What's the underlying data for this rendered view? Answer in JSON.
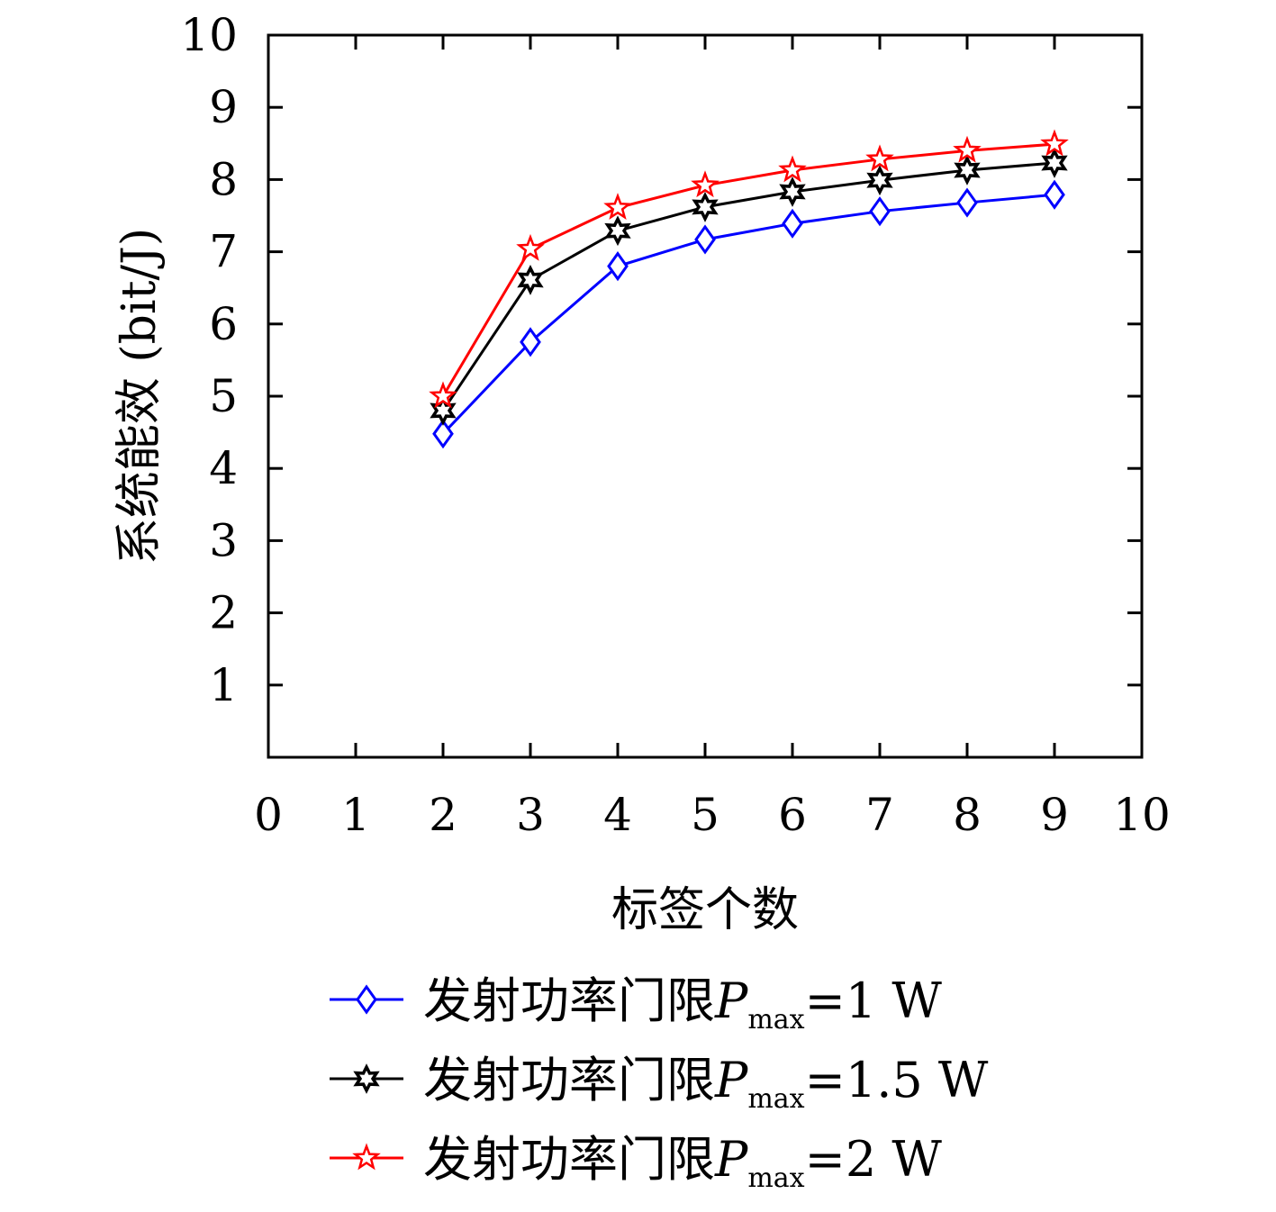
{
  "chart_data": {
    "type": "line",
    "title": "",
    "xlabel": "标签个数",
    "ylabel": "系统能效 (bit/J)",
    "xlim": [
      0,
      10
    ],
    "ylim": [
      0,
      10
    ],
    "xticks": [
      "0",
      "1",
      "2",
      "3",
      "4",
      "5",
      "6",
      "7",
      "8",
      "9",
      "10"
    ],
    "yticks": [
      "1",
      "2",
      "3",
      "4",
      "5",
      "6",
      "7",
      "8",
      "9",
      "10"
    ],
    "grid": false,
    "legend_position": "bottom",
    "x": [
      2,
      3,
      4,
      5,
      6,
      7,
      8,
      9
    ],
    "series": [
      {
        "name": "发射功率门限P_max=1 W",
        "prefix": "发射功率门限",
        "var": "P",
        "sub": "max",
        "suffix": "=1 W",
        "color": "#0000ff",
        "marker": "diamond",
        "values": [
          4.48,
          5.75,
          6.8,
          7.17,
          7.39,
          7.56,
          7.68,
          7.79
        ]
      },
      {
        "name": "发射功率门限P_max=1.5 W",
        "prefix": "发射功率门限",
        "var": "P",
        "sub": "max",
        "suffix": "=1.5 W",
        "color": "#000000",
        "marker": "hexagram",
        "values": [
          4.8,
          6.61,
          7.29,
          7.62,
          7.83,
          7.99,
          8.13,
          8.23
        ]
      },
      {
        "name": "发射功率门限P_max=2 W",
        "prefix": "发射功率门限",
        "var": "P",
        "sub": "max",
        "suffix": "=2 W",
        "color": "#ff0000",
        "marker": "pentagram",
        "values": [
          5.0,
          7.04,
          7.61,
          7.92,
          8.13,
          8.28,
          8.4,
          8.49
        ]
      }
    ]
  }
}
